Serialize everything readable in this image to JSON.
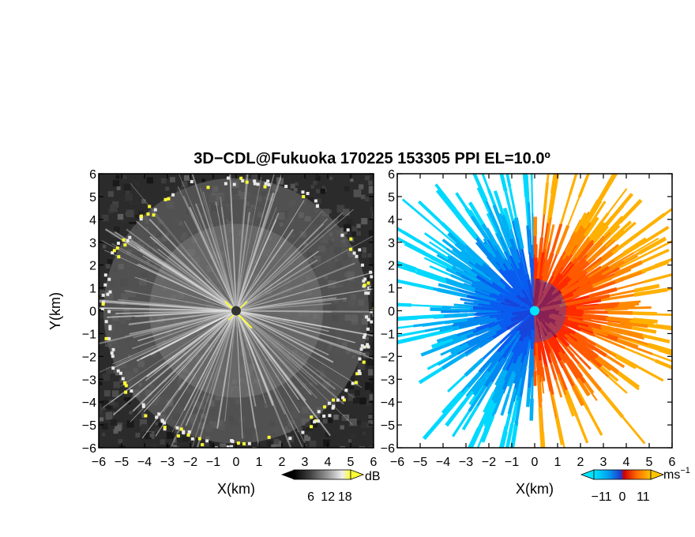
{
  "chart_data": {
    "type": "heatmap",
    "title": "3D−CDL@Fukuoka 170225 153305 PPI EL=10.0º",
    "ylabel": "Y(km)",
    "panels": [
      {
        "id": "reflectivity",
        "xlabel": "X(km)",
        "xlim": [
          -6,
          6
        ],
        "ylim": [
          -6,
          6
        ],
        "x_ticks": [
          "−6",
          "−5",
          "−4",
          "−3",
          "−2",
          "−1",
          "0",
          "1",
          "2",
          "3",
          "4",
          "5",
          "6"
        ],
        "y_ticks": [
          "−6",
          "−5",
          "−4",
          "−3",
          "−2",
          "−1",
          "0",
          "1",
          "2",
          "3",
          "4",
          "5",
          "6"
        ],
        "colorbar": {
          "unit": "dB",
          "ticks": [
            "6",
            "12",
            "18"
          ],
          "tick_values": [
            6,
            12,
            18
          ],
          "range": [
            0,
            20
          ],
          "colors": [
            "#000000",
            "#2a2a2a",
            "#555555",
            "#808080",
            "#aaaaaa",
            "#d0d0d0",
            "#f2f2f2",
            "#ffff33"
          ]
        }
      },
      {
        "id": "doppler-velocity",
        "xlabel": "X(km)",
        "xlim": [
          -6,
          6
        ],
        "ylim": [
          -6,
          6
        ],
        "x_ticks": [
          "−6",
          "−5",
          "−4",
          "−3",
          "−2",
          "−1",
          "0",
          "1",
          "2",
          "3",
          "4",
          "5",
          "6"
        ],
        "y_ticks": [
          "−6",
          "−5",
          "−4",
          "−3",
          "−2",
          "−1",
          "0",
          "1",
          "2",
          "3",
          "4",
          "5",
          "6"
        ],
        "colorbar": {
          "unit": "ms",
          "unit_exponent": "−1",
          "ticks": [
            "−11",
            "0",
            "11"
          ],
          "tick_values": [
            -11,
            0,
            11
          ],
          "range": [
            -15,
            15
          ],
          "colors": [
            "#00e5ff",
            "#00a8f0",
            "#0060ff",
            "#2030d0",
            "#c00000",
            "#ff3000",
            "#ff8000",
            "#ffc000"
          ]
        }
      }
    ]
  }
}
